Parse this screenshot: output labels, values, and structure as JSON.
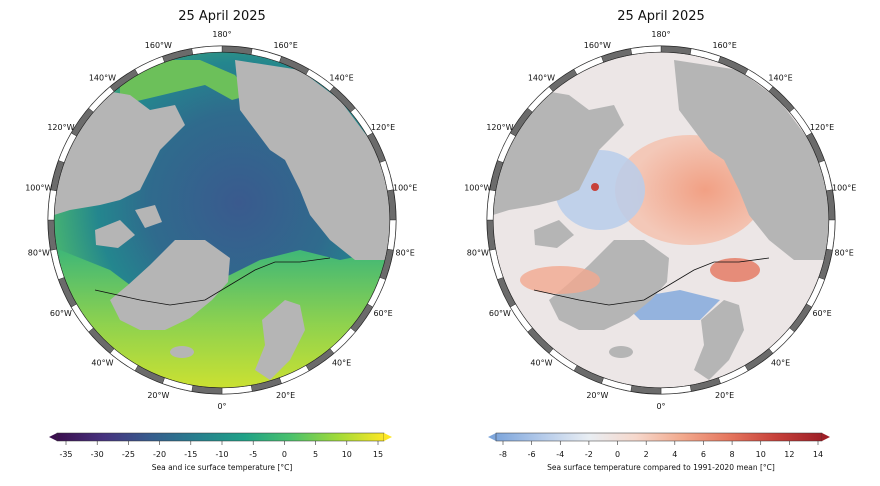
{
  "panels": [
    {
      "id": "left",
      "title": "25 April 2025",
      "lon_labels": [
        "180°",
        "160°E",
        "140°E",
        "120°E",
        "100°E",
        "80°E",
        "60°E",
        "40°E",
        "20°E",
        "0°",
        "20°W",
        "40°W",
        "60°W",
        "80°W",
        "100°W",
        "120°W",
        "140°W",
        "160°W"
      ],
      "colorbar": {
        "title": "Sea and ice surface temperature [°C]",
        "ticks": [
          "-35",
          "-30",
          "-25",
          "-20",
          "-15",
          "-10",
          "-5",
          "0",
          "5",
          "10",
          "15"
        ],
        "stops": [
          "#3b0f4f",
          "#46327e",
          "#365c8d",
          "#277f8e",
          "#1fa187",
          "#4ac16d",
          "#a0da39",
          "#fde725"
        ]
      }
    },
    {
      "id": "right",
      "title": "25 April 2025",
      "lon_labels": [
        "180°",
        "160°E",
        "140°E",
        "120°E",
        "100°E",
        "80°E",
        "60°E",
        "40°E",
        "20°E",
        "0°",
        "20°W",
        "40°W",
        "60°W",
        "80°W",
        "100°W",
        "120°W",
        "140°W",
        "160°W"
      ],
      "colorbar": {
        "title": "Sea surface temperature compared to 1991-2020 mean [°C]",
        "ticks": [
          "-8",
          "-6",
          "-4",
          "-2",
          "0",
          "2",
          "4",
          "6",
          "8",
          "10",
          "12",
          "14"
        ],
        "stops": [
          "#7ea6dc",
          "#b5cbea",
          "#e9eef3",
          "#f6d8cc",
          "#f2a98d",
          "#e5765e",
          "#c7413a",
          "#9e1f27"
        ]
      }
    }
  ],
  "colors": {
    "land": "#b5b5b5",
    "left_ocean_cold": "#39568c",
    "left_ocean_mid": "#2c728e",
    "left_ocean_warm": "#b8de29",
    "right_ocean_neutral": "#e8e4e4",
    "right_warm": "#f2a48a",
    "right_cold": "#aac4e8"
  }
}
